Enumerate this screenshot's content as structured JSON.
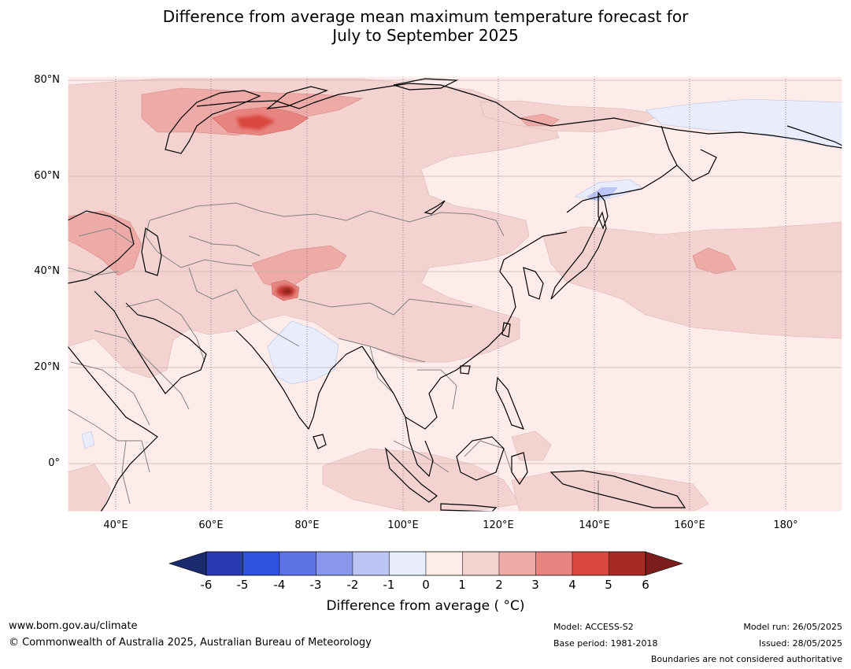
{
  "title": {
    "line1": "Difference from average mean maximum temperature forecast for",
    "line2": "July to September 2025"
  },
  "map": {
    "lat_labels": [
      "80°N",
      "60°N",
      "40°N",
      "20°N",
      "0°"
    ],
    "lon_labels": [
      "40°E",
      "60°E",
      "80°E",
      "100°E",
      "120°E",
      "140°E",
      "160°E",
      "180°"
    ],
    "extent": {
      "lon_min": 30,
      "lon_max": 192,
      "lat_min": -10,
      "lat_max": 81
    }
  },
  "colorbar": {
    "title": "Difference from average ( °C)",
    "labels": [
      "-6",
      "-5",
      "-4",
      "-3",
      "-2",
      "-1",
      "0",
      "1",
      "2",
      "3",
      "4",
      "5",
      "6"
    ],
    "under_color": "#1c2a6e",
    "over_color": "#7a1f1b",
    "colors": [
      "#2a3ab0",
      "#3050e0",
      "#5c72e4",
      "#8896ec",
      "#bcc6f4",
      "#e8ecfb",
      "#fdecea",
      "#f4d2d0",
      "#eeaaa6",
      "#e88480",
      "#d9463e",
      "#a82a24"
    ]
  },
  "footer": {
    "website": "www.bom.gov.au/climate",
    "copyright": "© Commonwealth of Australia 2025, Australian Bureau of Meteorology",
    "model": "Model: ACCESS-S2",
    "base_period": "Base period: 1981-2018",
    "model_run": "Model run: 26/05/2025",
    "issued": "Issued: 28/05/2025",
    "disclaimer": "Boundaries are not considered authoritative"
  }
}
